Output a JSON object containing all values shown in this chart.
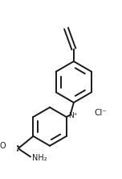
{
  "bg_color": "#ffffff",
  "line_color": "#1a1a1a",
  "line_width": 1.4,
  "cl_text": "Cl⁻",
  "n_plus_text": "N⁺",
  "nh2_text": "NH₂",
  "o_text": "O",
  "fig_width": 1.52,
  "fig_height": 2.22,
  "dpi": 100
}
